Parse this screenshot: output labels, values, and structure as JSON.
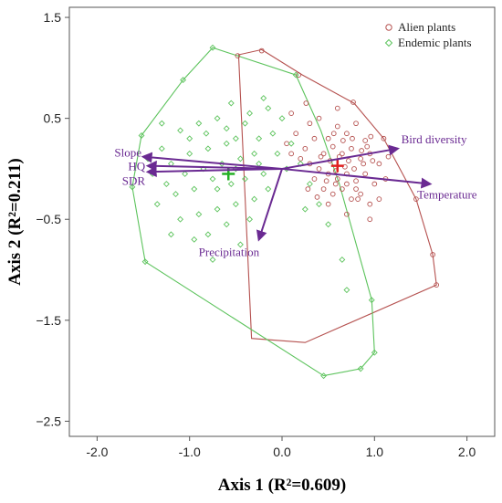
{
  "chart_data": {
    "type": "scatter",
    "xlabel": "Axis 1 (R²=0.609)",
    "ylabel": "Axis 2 (R²=0.211)",
    "xlim": [
      -2.3,
      2.3
    ],
    "ylim": [
      -2.65,
      1.6
    ],
    "xticks": [
      "-2.0",
      "-1.0",
      "0.0",
      "1.0",
      "2.0"
    ],
    "xtick_values": [
      -2,
      -1,
      0,
      1,
      2
    ],
    "yticks": [
      "1.5",
      "0.5",
      "−0.5",
      "−1.5",
      "−2.5"
    ],
    "ytick_values": [
      1.5,
      0.5,
      -0.5,
      -1.5,
      -2.5
    ],
    "legend_position": "top-right",
    "series": [
      {
        "name": "Alien plants",
        "color": "#b5514f",
        "centroid": [
          0.6,
          0.03
        ],
        "hull": [
          [
            -0.22,
            1.18
          ],
          [
            0.22,
            0.93
          ],
          [
            0.78,
            0.65
          ],
          [
            1.1,
            0.3
          ],
          [
            1.45,
            -0.3
          ],
          [
            1.63,
            -0.85
          ],
          [
            1.67,
            -1.15
          ],
          [
            0.25,
            -1.72
          ],
          [
            -0.33,
            -1.68
          ],
          [
            -0.47,
            1.13
          ]
        ],
        "points": [
          [
            -0.48,
            1.12
          ],
          [
            -0.22,
            1.17
          ],
          [
            0.18,
            0.93
          ],
          [
            0.77,
            0.66
          ],
          [
            1.1,
            0.3
          ],
          [
            1.45,
            -0.3
          ],
          [
            1.63,
            -0.85
          ],
          [
            1.67,
            -1.15
          ],
          [
            0.26,
            0.65
          ],
          [
            0.1,
            0.55
          ],
          [
            0.4,
            0.5
          ],
          [
            0.5,
            0.3
          ],
          [
            0.6,
            0.42
          ],
          [
            0.7,
            0.35
          ],
          [
            0.8,
            0.45
          ],
          [
            0.9,
            0.28
          ],
          [
            0.35,
            0.3
          ],
          [
            0.25,
            0.2
          ],
          [
            0.45,
            0.15
          ],
          [
            0.55,
            0.22
          ],
          [
            0.65,
            0.15
          ],
          [
            0.75,
            0.2
          ],
          [
            0.85,
            0.1
          ],
          [
            0.95,
            0.15
          ],
          [
            1.05,
            0.05
          ],
          [
            0.3,
            0.05
          ],
          [
            0.4,
            0.0
          ],
          [
            0.5,
            -0.05
          ],
          [
            0.6,
            -0.1
          ],
          [
            0.7,
            -0.05
          ],
          [
            0.8,
            -0.12
          ],
          [
            0.9,
            -0.05
          ],
          [
            1.0,
            -0.15
          ],
          [
            0.35,
            -0.1
          ],
          [
            0.45,
            -0.2
          ],
          [
            0.55,
            -0.25
          ],
          [
            0.65,
            -0.2
          ],
          [
            0.75,
            -0.3
          ],
          [
            0.85,
            -0.25
          ],
          [
            0.95,
            -0.35
          ],
          [
            1.05,
            -0.3
          ],
          [
            0.5,
            -0.35
          ],
          [
            0.7,
            -0.45
          ],
          [
            0.95,
            -0.5
          ],
          [
            0.2,
            0.1
          ],
          [
            0.15,
            0.35
          ],
          [
            0.6,
            0.6
          ],
          [
            0.72,
            0.08
          ],
          [
            0.62,
            0.12
          ],
          [
            0.58,
            -0.02
          ],
          [
            0.68,
            0.02
          ],
          [
            0.78,
            0.0
          ],
          [
            0.88,
            0.05
          ],
          [
            0.98,
            0.08
          ],
          [
            0.52,
            0.08
          ],
          [
            0.42,
            0.12
          ],
          [
            0.82,
            -0.3
          ],
          [
            0.92,
            0.22
          ],
          [
            0.38,
            -0.28
          ],
          [
            1.12,
            -0.1
          ],
          [
            0.28,
            -0.2
          ],
          [
            0.1,
            0.15
          ],
          [
            0.05,
            0.25
          ],
          [
            0.3,
            0.45
          ],
          [
            0.56,
            0.35
          ],
          [
            0.66,
            0.28
          ],
          [
            0.76,
            0.3
          ],
          [
            0.86,
            0.18
          ],
          [
            0.96,
            0.32
          ],
          [
            1.15,
            0.12
          ],
          [
            0.48,
            -0.12
          ],
          [
            0.58,
            -0.15
          ],
          [
            0.7,
            -0.15
          ],
          [
            0.8,
            -0.2
          ]
        ]
      },
      {
        "name": "Endemic plants",
        "color": "#5cc35c",
        "centroid": [
          -0.58,
          -0.05
        ],
        "hull": [
          [
            -0.75,
            1.2
          ],
          [
            -1.07,
            0.88
          ],
          [
            -1.52,
            0.33
          ],
          [
            -1.62,
            -0.18
          ],
          [
            -1.48,
            -0.92
          ],
          [
            0.45,
            -2.05
          ],
          [
            0.85,
            -1.98
          ],
          [
            1.0,
            -1.82
          ],
          [
            0.97,
            -1.3
          ],
          [
            0.62,
            -0.15
          ],
          [
            0.42,
            0.38
          ],
          [
            0.15,
            0.93
          ]
        ],
        "points": [
          [
            -0.75,
            1.2
          ],
          [
            -1.07,
            0.88
          ],
          [
            -1.52,
            0.33
          ],
          [
            -1.62,
            -0.18
          ],
          [
            -1.48,
            -0.92
          ],
          [
            0.45,
            -2.05
          ],
          [
            0.85,
            -1.98
          ],
          [
            1.0,
            -1.82
          ],
          [
            0.97,
            -1.3
          ],
          [
            0.15,
            0.93
          ],
          [
            -0.55,
            0.65
          ],
          [
            -0.7,
            0.5
          ],
          [
            -0.9,
            0.45
          ],
          [
            -1.1,
            0.38
          ],
          [
            -1.3,
            0.2
          ],
          [
            -0.4,
            0.45
          ],
          [
            -0.25,
            0.3
          ],
          [
            -0.1,
            0.35
          ],
          [
            -0.5,
            0.3
          ],
          [
            -0.6,
            0.25
          ],
          [
            -0.8,
            0.2
          ],
          [
            -1.0,
            0.15
          ],
          [
            -1.2,
            0.05
          ],
          [
            -1.4,
            -0.05
          ],
          [
            -0.3,
            0.15
          ],
          [
            -0.45,
            0.1
          ],
          [
            -0.65,
            0.05
          ],
          [
            -0.85,
            0.0
          ],
          [
            -1.05,
            -0.05
          ],
          [
            -1.25,
            -0.15
          ],
          [
            -0.2,
            -0.05
          ],
          [
            -0.4,
            -0.1
          ],
          [
            -0.55,
            -0.15
          ],
          [
            -0.75,
            -0.1
          ],
          [
            -0.95,
            -0.2
          ],
          [
            -1.15,
            -0.25
          ],
          [
            -1.35,
            -0.35
          ],
          [
            -0.3,
            -0.3
          ],
          [
            -0.5,
            -0.35
          ],
          [
            -0.7,
            -0.4
          ],
          [
            -0.9,
            -0.45
          ],
          [
            -1.1,
            -0.5
          ],
          [
            -0.6,
            -0.55
          ],
          [
            -0.8,
            -0.65
          ],
          [
            -0.45,
            -0.75
          ],
          [
            -0.75,
            -0.9
          ],
          [
            0.0,
            0.5
          ],
          [
            0.1,
            0.25
          ],
          [
            0.2,
            0.05
          ],
          [
            0.3,
            -0.15
          ],
          [
            0.4,
            -0.35
          ],
          [
            0.5,
            -0.55
          ],
          [
            0.65,
            -0.9
          ],
          [
            0.7,
            -1.2
          ],
          [
            -0.15,
            0.6
          ],
          [
            0.05,
            0.0
          ],
          [
            0.25,
            -0.4
          ],
          [
            -1.3,
            0.45
          ],
          [
            -1.45,
            0.1
          ],
          [
            -0.2,
            0.7
          ],
          [
            -0.35,
            0.55
          ],
          [
            -0.05,
            0.15
          ],
          [
            -0.6,
            0.4
          ],
          [
            -0.82,
            0.35
          ],
          [
            -1.0,
            0.3
          ],
          [
            -0.15,
            -0.2
          ],
          [
            -0.35,
            -0.5
          ],
          [
            -0.95,
            -0.7
          ],
          [
            -1.2,
            -0.65
          ],
          [
            -0.25,
            0.05
          ],
          [
            -0.7,
            -0.2
          ],
          [
            -0.5,
            0.0
          ]
        ]
      }
    ],
    "vectors": [
      {
        "label": "Bird diversity",
        "end": [
          1.25,
          0.2
        ]
      },
      {
        "label": "Temperature",
        "end": [
          1.6,
          -0.15
        ]
      },
      {
        "label": "Slope",
        "end": [
          -1.5,
          0.12
        ]
      },
      {
        "label": "HQ",
        "end": [
          -1.45,
          0.03
        ]
      },
      {
        "label": "SDR",
        "end": [
          -1.45,
          -0.03
        ]
      },
      {
        "label": "Precipitation",
        "end": [
          -0.25,
          -0.7
        ]
      }
    ]
  }
}
